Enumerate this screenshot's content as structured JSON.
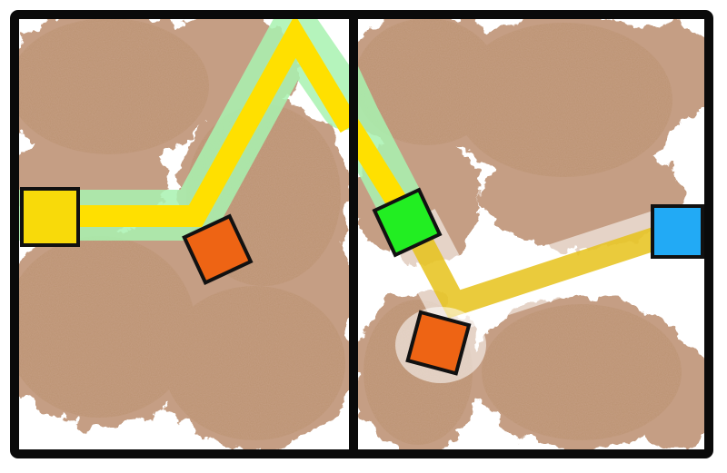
{
  "colors": {
    "frame": "#0a0a0a",
    "background": "#ffffff",
    "dirt": "#b07a55",
    "dirt_dark": "#8c5634",
    "path_yellow": "#ffe000",
    "path_dim_yellow": "#e6c21a",
    "glow_green": "#a8f2b0",
    "square_yellow": "#f8da0a",
    "square_orange": "#ee6414",
    "square_green": "#22ee22",
    "square_blue": "#22aaf5"
  },
  "icons": {
    "start_square": "yellow-square-icon",
    "goal_square": "blue-square-icon",
    "junction_square": "green-square-icon",
    "hazard_square": "orange-diamond-icon"
  }
}
